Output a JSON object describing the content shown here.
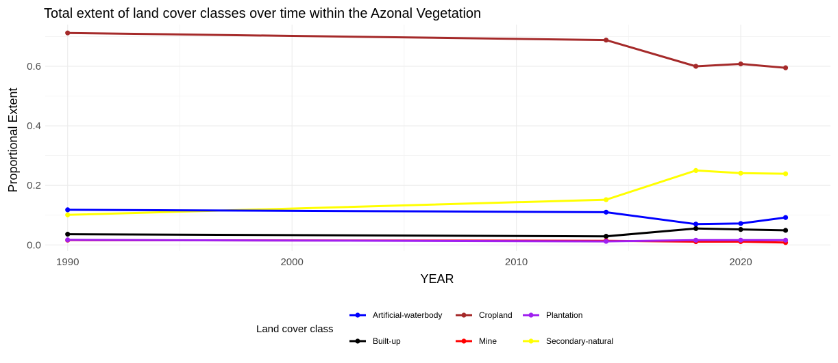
{
  "chart_data": {
    "type": "line",
    "title": "Total extent of land cover classes over time within the Azonal Vegetation",
    "xlabel": "YEAR",
    "ylabel": "Proportional Extent",
    "xlim": [
      1989,
      2024
    ],
    "ylim": [
      -0.02,
      0.74
    ],
    "x_ticks": [
      1990,
      2000,
      2010,
      2020
    ],
    "x_tick_labels": [
      "1990",
      "2000",
      "2010",
      "2020"
    ],
    "y_ticks": [
      0.0,
      0.2,
      0.4,
      0.6
    ],
    "y_tick_labels": [
      "0.0",
      "0.2",
      "0.4",
      "0.6"
    ],
    "grid": true,
    "legend": {
      "title": "Land cover class",
      "position": "bottom"
    },
    "x": [
      1990,
      2014,
      2018,
      2020,
      2022
    ],
    "series": [
      {
        "name": "Artificial-waterbody",
        "color": "#0000ff",
        "values": [
          0.118,
          0.11,
          0.07,
          0.072,
          0.092
        ]
      },
      {
        "name": "Cropland",
        "color": "#a52a2a",
        "values": [
          0.712,
          0.688,
          0.6,
          0.608,
          0.595
        ]
      },
      {
        "name": "Plantation",
        "color": "#a020f0",
        "values": [
          0.017,
          0.012,
          0.016,
          0.016,
          0.016
        ]
      },
      {
        "name": "Built-up",
        "color": "#000000",
        "values": [
          0.036,
          0.029,
          0.055,
          0.052,
          0.049
        ]
      },
      {
        "name": "Mine",
        "color": "#ff0000",
        "values": [
          0.016,
          0.014,
          0.011,
          0.011,
          0.008
        ]
      },
      {
        "name": "Secondary-natural",
        "color": "#ffff00",
        "values": [
          0.101,
          0.152,
          0.25,
          0.241,
          0.239
        ]
      }
    ]
  }
}
